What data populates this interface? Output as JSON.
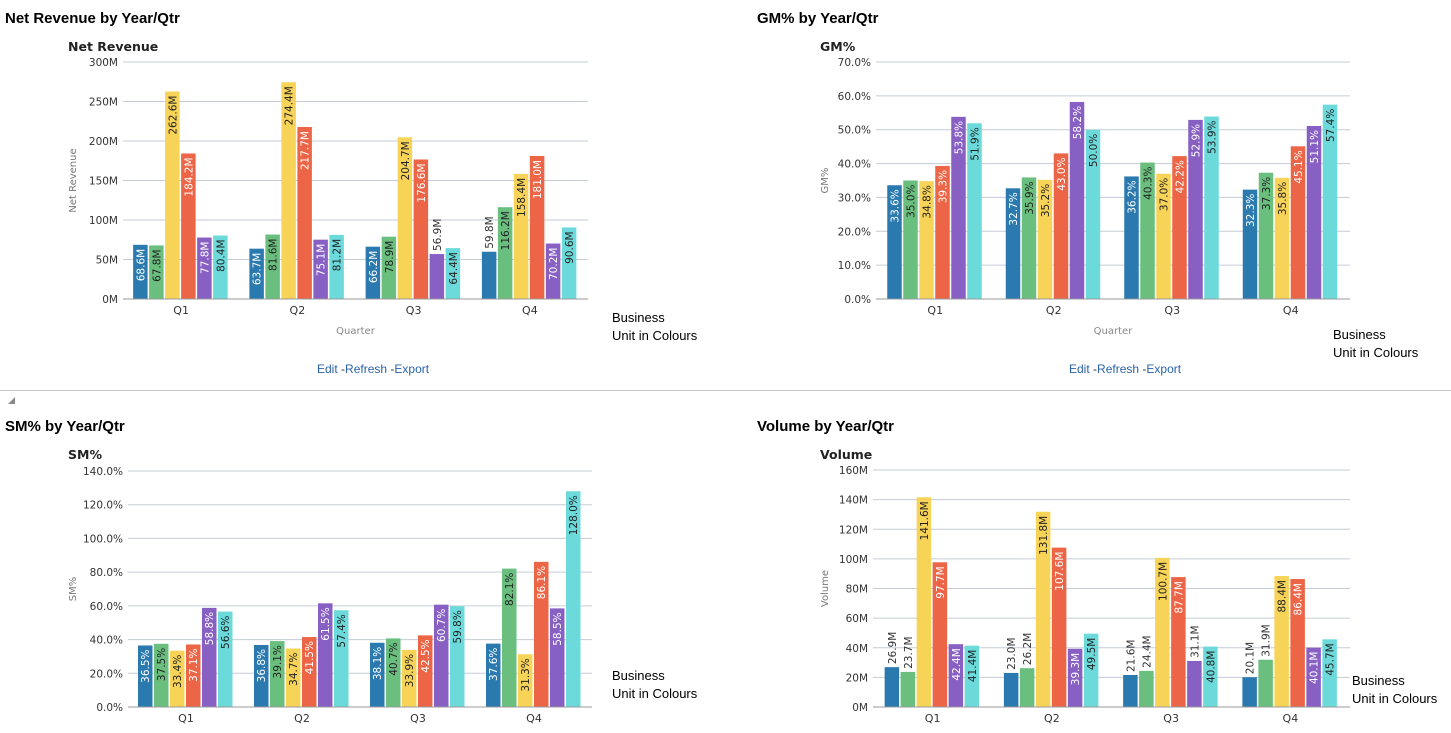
{
  "colors": [
    "#2a7ab0",
    "#6abf7f",
    "#f7d358",
    "#ec6546",
    "#8860c4",
    "#6cdadb"
  ],
  "links": {
    "edit": "Edit",
    "refresh": "Refresh",
    "export": "Export",
    "sep": "-"
  },
  "panels": [
    {
      "title": "Net Revenue by Year/Qtr",
      "legend_note_1": "Business",
      "legend_note_2": "Unit in Colours"
    },
    {
      "title": "GM% by Year/Qtr",
      "legend_note_1": "Business",
      "legend_note_2": "Unit in Colours"
    },
    {
      "title": "SM% by Year/Qtr",
      "legend_note_1": "Business",
      "legend_note_2": "Unit in Colours"
    },
    {
      "title": "Volume by Year/Qtr",
      "legend_note_1": "Business",
      "legend_note_2": "Unit in Colours"
    }
  ],
  "chart_data": [
    {
      "type": "bar",
      "title": "Net Revenue",
      "ylabel": "Net Revenue",
      "xlabel": "Quarter",
      "ylim": [
        0,
        300
      ],
      "yticks": [
        "0M",
        "50M",
        "100M",
        "150M",
        "200M",
        "250M",
        "300M"
      ],
      "tickstep": 50,
      "unit": "M",
      "decimals": 1,
      "grid": true,
      "categories": [
        "Q1",
        "Q2",
        "Q3",
        "Q4"
      ],
      "series": [
        {
          "values": [
            68.6,
            63.7,
            66.2,
            59.8
          ]
        },
        {
          "values": [
            67.8,
            81.6,
            78.9,
            116.2
          ]
        },
        {
          "values": [
            262.6,
            274.4,
            204.7,
            158.4
          ]
        },
        {
          "values": [
            184.2,
            217.7,
            176.6,
            181.0
          ]
        },
        {
          "values": [
            77.8,
            75.1,
            56.9,
            70.2
          ]
        },
        {
          "values": [
            80.4,
            81.2,
            64.4,
            90.6
          ]
        }
      ]
    },
    {
      "type": "bar",
      "title": "GM%",
      "ylabel": "GM%",
      "xlabel": "Quarter",
      "ylim": [
        0,
        70
      ],
      "yticks": [
        "0.0%",
        "10.0%",
        "20.0%",
        "30.0%",
        "40.0%",
        "50.0%",
        "60.0%",
        "70.0%"
      ],
      "tickstep": 10,
      "unit": "%",
      "decimals": 1,
      "grid": true,
      "categories": [
        "Q1",
        "Q2",
        "Q3",
        "Q4"
      ],
      "series": [
        {
          "values": [
            33.6,
            32.7,
            36.2,
            32.3
          ]
        },
        {
          "values": [
            35.0,
            35.9,
            40.3,
            37.3
          ]
        },
        {
          "values": [
            34.8,
            35.2,
            37.0,
            35.8
          ]
        },
        {
          "values": [
            39.3,
            43.0,
            42.2,
            45.1
          ]
        },
        {
          "values": [
            53.8,
            58.2,
            52.9,
            51.1
          ]
        },
        {
          "values": [
            51.9,
            50.0,
            53.9,
            57.4
          ]
        }
      ]
    },
    {
      "type": "bar",
      "title": "SM%",
      "ylabel": "SM%",
      "xlabel": "",
      "ylim": [
        0,
        140
      ],
      "yticks": [
        "0.0%",
        "20.0%",
        "40.0%",
        "60.0%",
        "80.0%",
        "100.0%",
        "120.0%",
        "140.0%"
      ],
      "tickstep": 20,
      "unit": "%",
      "decimals": 1,
      "grid": true,
      "categories": [
        "Q1",
        "Q2",
        "Q3",
        "Q4"
      ],
      "series": [
        {
          "values": [
            36.5,
            36.8,
            38.1,
            37.6
          ]
        },
        {
          "values": [
            37.5,
            39.1,
            40.7,
            82.1
          ]
        },
        {
          "values": [
            33.4,
            34.7,
            33.9,
            31.3
          ]
        },
        {
          "values": [
            37.1,
            41.5,
            42.5,
            86.1
          ]
        },
        {
          "values": [
            58.8,
            61.5,
            60.7,
            58.5
          ]
        },
        {
          "values": [
            56.6,
            57.4,
            59.8,
            128.0
          ]
        }
      ]
    },
    {
      "type": "bar",
      "title": "Volume",
      "ylabel": "Volume",
      "xlabel": "",
      "ylim": [
        0,
        160
      ],
      "yticks": [
        "0M",
        "20M",
        "40M",
        "60M",
        "80M",
        "100M",
        "120M",
        "140M",
        "160M"
      ],
      "tickstep": 20,
      "unit": "M",
      "decimals": 1,
      "grid": true,
      "categories": [
        "Q1",
        "Q2",
        "Q3",
        "Q4"
      ],
      "series": [
        {
          "values": [
            26.9,
            23.0,
            21.6,
            20.1
          ]
        },
        {
          "values": [
            23.7,
            26.2,
            24.4,
            31.9
          ]
        },
        {
          "values": [
            141.6,
            131.8,
            100.7,
            88.4
          ]
        },
        {
          "values": [
            97.7,
            107.6,
            87.7,
            86.4
          ]
        },
        {
          "values": [
            42.4,
            39.3,
            31.1,
            40.1
          ]
        },
        {
          "values": [
            41.4,
            49.5,
            40.8,
            45.7
          ]
        }
      ]
    }
  ]
}
